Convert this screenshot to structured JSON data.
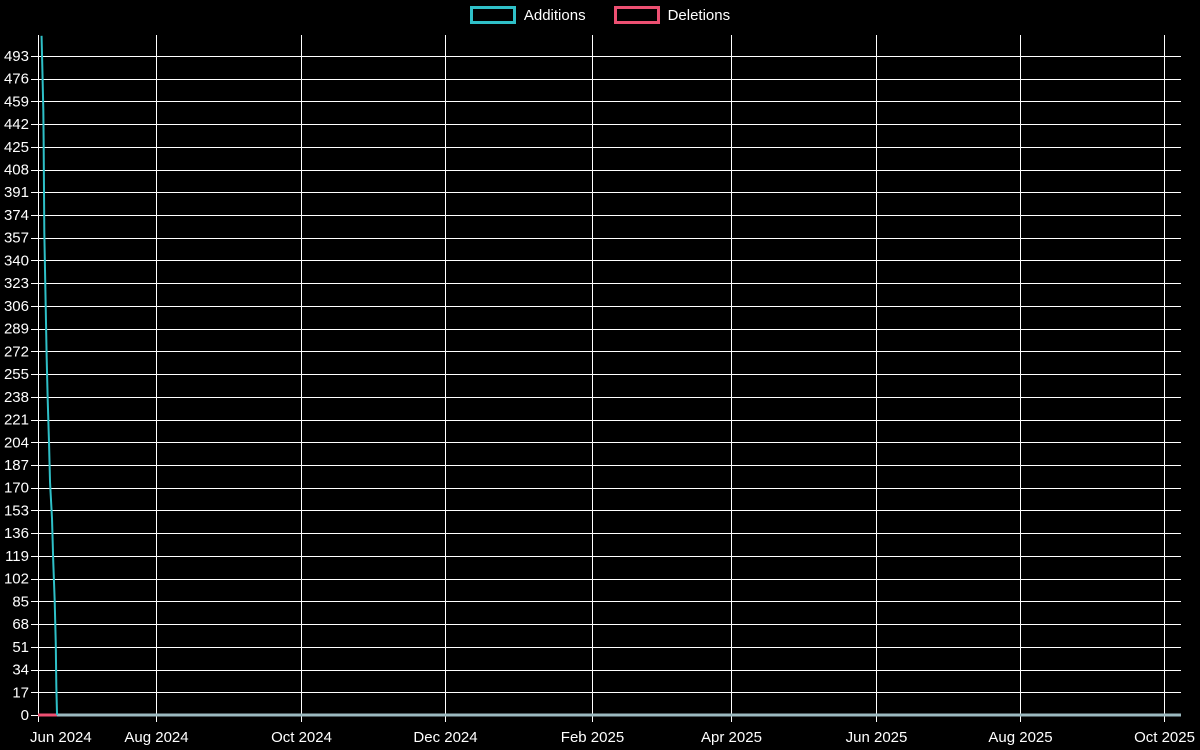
{
  "chart_data": {
    "type": "line",
    "legend": {
      "position": "top",
      "entries": [
        "Additions",
        "Deletions"
      ]
    },
    "background_color": "#000000",
    "grid": true,
    "grid_color": "#ffffff",
    "text_color": "#ffffff",
    "axis_color": "#ffffff",
    "zero_overlap_line_color": "#9bb9bf",
    "x_domain": [
      "2024-06-12",
      "2025-10-08"
    ],
    "ylim": [
      0,
      508.6
    ],
    "y_ticks": [
      0,
      17,
      34,
      51,
      68,
      85,
      102,
      119,
      136,
      153,
      170,
      187,
      204,
      221,
      238,
      255,
      272,
      289,
      306,
      323,
      340,
      357,
      374,
      391,
      408,
      425,
      442,
      459,
      476,
      493
    ],
    "x_ticks": [
      {
        "label": "Jun 2024",
        "date": "2024-06-12"
      },
      {
        "label": "Aug 2024",
        "date": "2024-08-01"
      },
      {
        "label": "Oct 2024",
        "date": "2024-10-01"
      },
      {
        "label": "Dec 2024",
        "date": "2024-12-01"
      },
      {
        "label": "Feb 2025",
        "date": "2025-02-01"
      },
      {
        "label": "Apr 2025",
        "date": "2025-04-01"
      },
      {
        "label": "Jun 2025",
        "date": "2025-06-01"
      },
      {
        "label": "Aug 2025",
        "date": "2025-08-01"
      },
      {
        "label": "Oct 2025",
        "date": "2025-10-01"
      }
    ],
    "series": [
      {
        "name": "Additions",
        "color": "#2fc0c8",
        "points": [
          [
            "2024-06-13T12:00",
            508
          ],
          [
            "2024-06-13T20:00",
            484
          ],
          [
            "2024-06-14T06:00",
            452
          ],
          [
            "2024-06-14T09:00",
            431
          ],
          [
            "2024-06-14T16:00",
            361
          ],
          [
            "2024-06-15T06:00",
            306
          ],
          [
            "2024-06-15T16:00",
            267
          ],
          [
            "2024-06-16T02:00",
            237
          ],
          [
            "2024-06-16T16:00",
            203
          ],
          [
            "2024-06-17T02:00",
            174
          ],
          [
            "2024-06-17T22:00",
            147
          ],
          [
            "2024-06-18T11:00",
            114
          ],
          [
            "2024-06-19T01:00",
            86
          ],
          [
            "2024-06-19T12:00",
            54
          ],
          [
            "2024-06-19T18:00",
            21
          ],
          [
            "2024-06-20T01:00",
            0
          ],
          [
            "2025-10-08T00:00",
            0
          ]
        ]
      },
      {
        "name": "Deletions",
        "color": "#ed5072",
        "points": [
          [
            "2024-06-12T00:00",
            0
          ],
          [
            "2025-10-08T00:00",
            0
          ]
        ]
      }
    ]
  }
}
